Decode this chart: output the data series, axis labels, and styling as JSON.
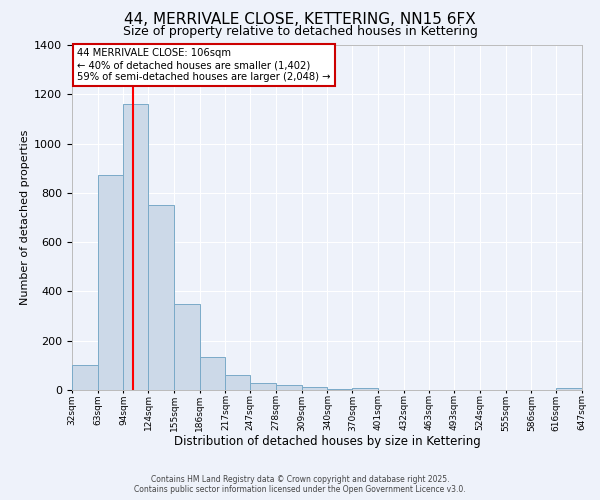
{
  "title": "44, MERRIVALE CLOSE, KETTERING, NN15 6FX",
  "subtitle": "Size of property relative to detached houses in Kettering",
  "xlabel": "Distribution of detached houses by size in Kettering",
  "ylabel": "Number of detached properties",
  "bin_edges": [
    32,
    63,
    94,
    124,
    155,
    186,
    217,
    247,
    278,
    309,
    340,
    370,
    401,
    432,
    463,
    493,
    524,
    555,
    586,
    616,
    647
  ],
  "bin_labels": [
    "32sqm",
    "63sqm",
    "94sqm",
    "124sqm",
    "155sqm",
    "186sqm",
    "217sqm",
    "247sqm",
    "278sqm",
    "309sqm",
    "340sqm",
    "370sqm",
    "401sqm",
    "432sqm",
    "463sqm",
    "493sqm",
    "524sqm",
    "555sqm",
    "586sqm",
    "616sqm",
    "647sqm"
  ],
  "bar_heights": [
    103,
    872,
    1160,
    750,
    350,
    135,
    62,
    30,
    20,
    12,
    5,
    10,
    0,
    0,
    0,
    0,
    0,
    0,
    0,
    8
  ],
  "bar_color": "#ccd9e8",
  "bar_edgecolor": "#7aaac8",
  "ylim": [
    0,
    1400
  ],
  "yticks": [
    0,
    200,
    400,
    600,
    800,
    1000,
    1200,
    1400
  ],
  "red_line_x": 106,
  "annotation_title": "44 MERRIVALE CLOSE: 106sqm",
  "annotation_line1": "← 40% of detached houses are smaller (1,402)",
  "annotation_line2": "59% of semi-detached houses are larger (2,048) →",
  "annotation_box_facecolor": "#ffffff",
  "annotation_box_edgecolor": "#cc0000",
  "footer_line1": "Contains HM Land Registry data © Crown copyright and database right 2025.",
  "footer_line2": "Contains public sector information licensed under the Open Government Licence v3.0.",
  "background_color": "#eef2fa",
  "grid_color": "#ffffff",
  "title_fontsize": 11,
  "subtitle_fontsize": 9,
  "ylabel_fontsize": 8,
  "xlabel_fontsize": 8.5
}
